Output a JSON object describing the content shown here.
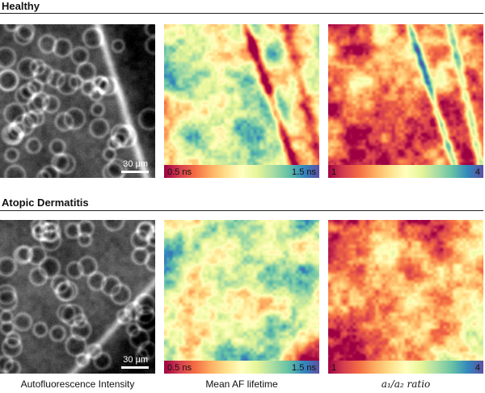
{
  "sections": [
    {
      "title": "Healthy",
      "scale_bar": "30 μm",
      "lifetime_bar": {
        "min": "0.5 ns",
        "max": "1.5 ns"
      },
      "ratio_bar": {
        "min": "1",
        "max": "4"
      }
    },
    {
      "title": "Atopic Dermatitis",
      "scale_bar": "30 μm",
      "lifetime_bar": {
        "min": "0.5 ns",
        "max": "1.5 ns"
      },
      "ratio_bar": {
        "min": "1",
        "max": "4"
      }
    }
  ],
  "captions": {
    "intensity": "Autofluorescence Intensity",
    "lifetime": "Mean AF lifetime",
    "ratio": "a₁/a₂ ratio"
  },
  "colormap": [
    "#9e0142",
    "#d53e4f",
    "#f46d43",
    "#fdae61",
    "#fee08b",
    "#ffffbf",
    "#e6f598",
    "#abdda4",
    "#66c2a5",
    "#3288bd",
    "#5e4fa2"
  ]
}
